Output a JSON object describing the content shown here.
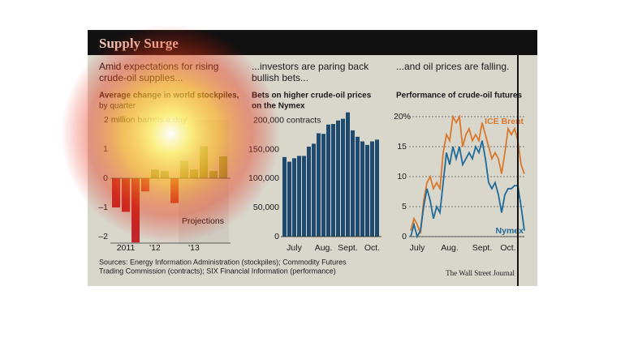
{
  "title": "Supply Surge",
  "headings": [
    "Amid expectations for rising",
    "crude-oil supplies...",
    "...investors are paring back",
    "bullish bets...",
    "...and oil prices are falling."
  ],
  "sources": [
    "Sources: Energy Information Administration (stockpiles); Commodity Futures",
    "Trading Commission (contracts); SIX Financial Information (performance)"
  ],
  "credit": "The Wall Street Journal",
  "chart_data": [
    {
      "type": "bar",
      "title": "Average change in world stockpiles,",
      "subtitle": "by quarter",
      "categories": [
        null,
        "2011",
        null,
        null,
        "'12",
        null,
        null,
        null,
        "'13",
        null,
        null,
        null
      ],
      "values": [
        -1.0,
        -1.15,
        -2.2,
        -0.45,
        0.3,
        0.25,
        -0.85,
        0.6,
        0.3,
        1.1,
        0.25,
        0.75
      ],
      "color": "#84983c",
      "negative_color": "#c0282a",
      "annotation": "Projections",
      "ylim": [
        -2.25,
        2
      ],
      "yticks": [
        {
          "value": -2,
          "label": "–2"
        },
        {
          "value": -1,
          "label": "–1"
        },
        0,
        1,
        {
          "value": 2,
          "label": "2 million barrels a day"
        }
      ]
    },
    {
      "type": "bar",
      "title": "Bets on higher crude-oil prices",
      "subtitle": "on the Nymex",
      "categories": [
        null,
        null,
        "July",
        null,
        null,
        null,
        null,
        null,
        "Aug.",
        null,
        null,
        null,
        null,
        "Sept.",
        null,
        null,
        null,
        null,
        "Oct.",
        null
      ],
      "values": [
        137000,
        129000,
        135000,
        139000,
        139000,
        155000,
        160000,
        178000,
        177000,
        193000,
        194000,
        200000,
        203000,
        214000,
        183000,
        172000,
        164000,
        158000,
        164000,
        167000
      ],
      "color": "#1d4a6e",
      "ylim": [
        0,
        220000
      ],
      "yticks": [
        0,
        {
          "value": 50000,
          "label": "50,000"
        },
        {
          "value": 100000,
          "label": "100,000"
        },
        {
          "value": 150000,
          "label": "150,000"
        },
        {
          "value": 200000,
          "label": "200,000 contracts"
        }
      ]
    },
    {
      "type": "line",
      "title": "Performance of crude-oil futures",
      "categories": [
        null,
        null,
        "July",
        null,
        null,
        null,
        null,
        null,
        null,
        null,
        null,
        null,
        "Aug.",
        null,
        null,
        null,
        null,
        null,
        null,
        null,
        null,
        null,
        "Sept.",
        null,
        null,
        null,
        null,
        null,
        null,
        null,
        "Oct.",
        null,
        null,
        null,
        null,
        null
      ],
      "series": [
        {
          "name": "ICE Brent",
          "color": "#d9772a",
          "values": [
            1,
            3,
            2,
            0.5,
            6,
            9,
            10,
            8,
            9,
            8,
            14,
            17,
            16,
            20,
            19,
            20,
            15,
            17,
            18,
            16,
            17,
            16,
            19,
            17,
            15,
            13,
            14,
            13,
            10.5,
            14,
            18,
            17,
            18,
            16,
            12,
            10.5
          ]
        },
        {
          "name": "Nymex",
          "color": "#1f6a98",
          "values": [
            0,
            2,
            0,
            1,
            5,
            8,
            6,
            3,
            5,
            4,
            9,
            14,
            12,
            15,
            13,
            15,
            12,
            13,
            14,
            13,
            15,
            14,
            16,
            13,
            9,
            8,
            9,
            7,
            4,
            7,
            8,
            8,
            8.5,
            8.5,
            5,
            1
          ]
        }
      ],
      "ylim": [
        0,
        20
      ],
      "yticks": [
        0,
        5,
        10,
        15,
        {
          "value": 20,
          "label": "20%"
        }
      ],
      "grid": true
    }
  ]
}
